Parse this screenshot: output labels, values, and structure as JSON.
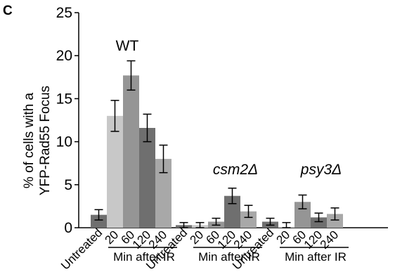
{
  "panel_label": "C",
  "chart_data": {
    "type": "bar",
    "ylabel_lines": [
      "% of cells with a",
      "YFP-Rad55 Focus"
    ],
    "ylim": [
      0,
      25
    ],
    "yticks": [
      "0",
      "5",
      "10",
      "15",
      "20",
      "25"
    ],
    "grid": false,
    "groups": [
      {
        "label": "WT",
        "sub_label": "Min after IR",
        "categories": [
          "Untreated",
          "20",
          "60",
          "120",
          "240"
        ],
        "values": [
          1.5,
          13.0,
          17.7,
          11.6,
          8.0
        ],
        "errors": [
          0.6,
          1.8,
          1.7,
          1.6,
          1.6
        ],
        "colors": [
          "#6f6f6f",
          "#c8c8c8",
          "#959595",
          "#6f6f6f",
          "#a8a8a8"
        ]
      },
      {
        "label": "csm2Δ",
        "sub_label": "Min after IR",
        "categories": [
          "Untreated",
          "20",
          "60",
          "120",
          "240"
        ],
        "values": [
          0.3,
          0.3,
          0.7,
          3.7,
          1.9
        ],
        "errors": [
          0.3,
          0.3,
          0.4,
          0.9,
          0.7
        ],
        "colors": [
          "#6f6f6f",
          "#c8c8c8",
          "#959595",
          "#6f6f6f",
          "#a8a8a8"
        ]
      },
      {
        "label": "psy3Δ",
        "sub_label": "Min after IR",
        "categories": [
          "Untreated",
          "20",
          "60",
          "120",
          "240"
        ],
        "values": [
          0.7,
          0.1,
          3.0,
          1.2,
          1.6
        ],
        "errors": [
          0.4,
          0.5,
          0.8,
          0.5,
          0.7
        ],
        "colors": [
          "#6f6f6f",
          "#c8c8c8",
          "#959595",
          "#6f6f6f",
          "#a8a8a8"
        ]
      }
    ]
  }
}
